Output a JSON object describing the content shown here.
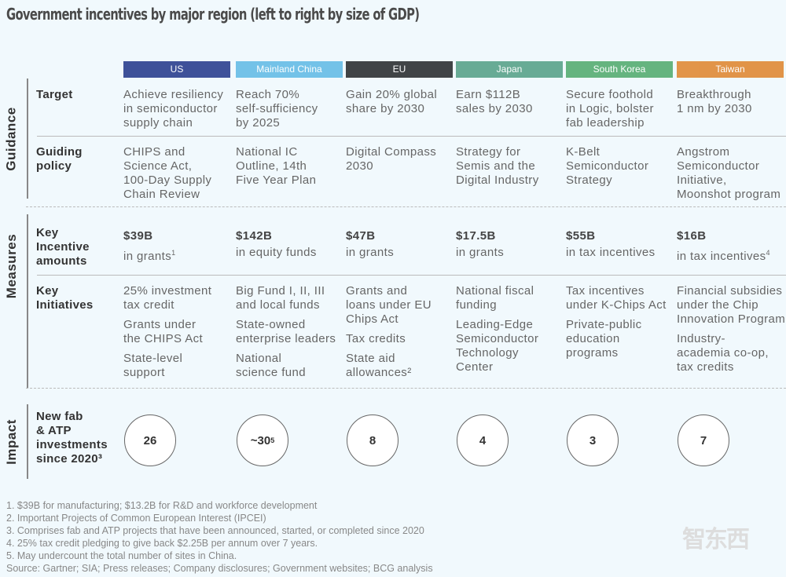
{
  "title": "Government incentives by major region (left to right by size of GDP)",
  "regions": [
    {
      "name": "US",
      "color": "#2b3f8f",
      "target": [
        "Achieve resiliency",
        "in semiconductor",
        "supply chain"
      ],
      "policy": [
        "CHIPS and",
        "Science Act,",
        "100-Day Supply",
        "Chain Review"
      ],
      "amount": "$39B",
      "amount_desc": "in grants",
      "amount_sup": "1",
      "initiatives": [
        [
          "25% investment",
          "tax credit"
        ],
        [
          "Grants under",
          "the CHIPS Act"
        ],
        [
          "State-level",
          "support"
        ]
      ],
      "fabs": "26",
      "fabs_sup": ""
    },
    {
      "name": "Mainland China",
      "color": "#66bde6",
      "target": [
        "Reach 70%",
        "self-sufficiency",
        "by 2025"
      ],
      "policy": [
        "National IC",
        "Outline, 14th",
        "Five Year Plan"
      ],
      "amount": "$142B",
      "amount_desc": "in equity funds",
      "amount_sup": "",
      "initiatives": [
        [
          "Big Fund I, II, III",
          "and local funds"
        ],
        [
          "State-owned",
          "enterprise leaders"
        ],
        [
          "National",
          "science fund"
        ]
      ],
      "fabs": "~30",
      "fabs_sup": "5"
    },
    {
      "name": "EU",
      "color": "#2d3133",
      "target": [
        "Gain 20% global",
        "share by 2030"
      ],
      "policy": [
        "Digital Compass",
        "2030"
      ],
      "amount": "$47B",
      "amount_desc": "in grants",
      "amount_sup": "",
      "initiatives": [
        [
          "Grants and",
          "loans under EU",
          "Chips Act"
        ],
        [
          "Tax credits"
        ],
        [
          "State aid",
          "allowances²"
        ]
      ],
      "fabs": "8",
      "fabs_sup": ""
    },
    {
      "name": "Japan",
      "color": "#5aa38a",
      "target": [
        "Earn $112B",
        "sales by 2030"
      ],
      "policy": [
        "Strategy for",
        "Semis and the",
        "Digital Industry"
      ],
      "amount": "$17.5B",
      "amount_desc": "in grants",
      "amount_sup": "",
      "initiatives": [
        [
          "National fiscal",
          "funding"
        ],
        [
          "Leading-Edge",
          "Semiconductor",
          "Technology",
          "Center"
        ]
      ],
      "fabs": "4",
      "fabs_sup": ""
    },
    {
      "name": "South Korea",
      "color": "#56ad72",
      "target": [
        "Secure foothold",
        "in Logic, bolster",
        "fab leadership"
      ],
      "policy": [
        "K-Belt",
        "Semiconductor",
        "Strategy"
      ],
      "amount": "$55B",
      "amount_desc": "in tax incentives",
      "amount_sup": "",
      "initiatives": [
        [
          "Tax incentives",
          "under K-Chips Act"
        ],
        [
          "Private-public",
          "education",
          "programs"
        ]
      ],
      "fabs": "3",
      "fabs_sup": ""
    },
    {
      "name": "Taiwan",
      "color": "#e08a35",
      "target": [
        "Breakthrough",
        "1 nm by 2030"
      ],
      "policy": [
        "Angstrom",
        "Semiconductor",
        "Initiative,",
        "Moonshot program"
      ],
      "amount": "$16B",
      "amount_desc": "in tax incentives",
      "amount_sup": "4",
      "initiatives": [
        [
          "Financial subsidies",
          "under the Chip",
          "Innovation Program"
        ],
        [
          "Industry-",
          "academia co-op,",
          "tax credits"
        ]
      ],
      "fabs": "7",
      "fabs_sup": ""
    }
  ],
  "sections": {
    "guidance": "Guidance",
    "measures": "Measures",
    "impact": "Impact"
  },
  "rows": {
    "target": "Target",
    "policy": [
      "Guiding",
      "policy"
    ],
    "amounts": [
      "Key",
      "Incentive",
      "amounts"
    ],
    "initiatives": [
      "Key",
      "Initiatives"
    ],
    "impact": [
      "New fab",
      "& ATP",
      "investments",
      "since 2020³"
    ]
  },
  "footnotes": [
    "1. $39B for manufacturing; $13.2B for R&D and workforce development",
    "2. Important Projects of Common European Interest (IPCEI)",
    "3. Comprises fab and ATP projects that have been announced, started, or completed since 2020",
    "4. 25% tax credit pledging to give back $2.25B per annum over 7 years.",
    "5. May undercount the total number of sites in China.",
    "Source: Gartner; SIA; Press releases; Company disclosures; Government websites; BCG analysis"
  ],
  "watermark": "智东西"
}
